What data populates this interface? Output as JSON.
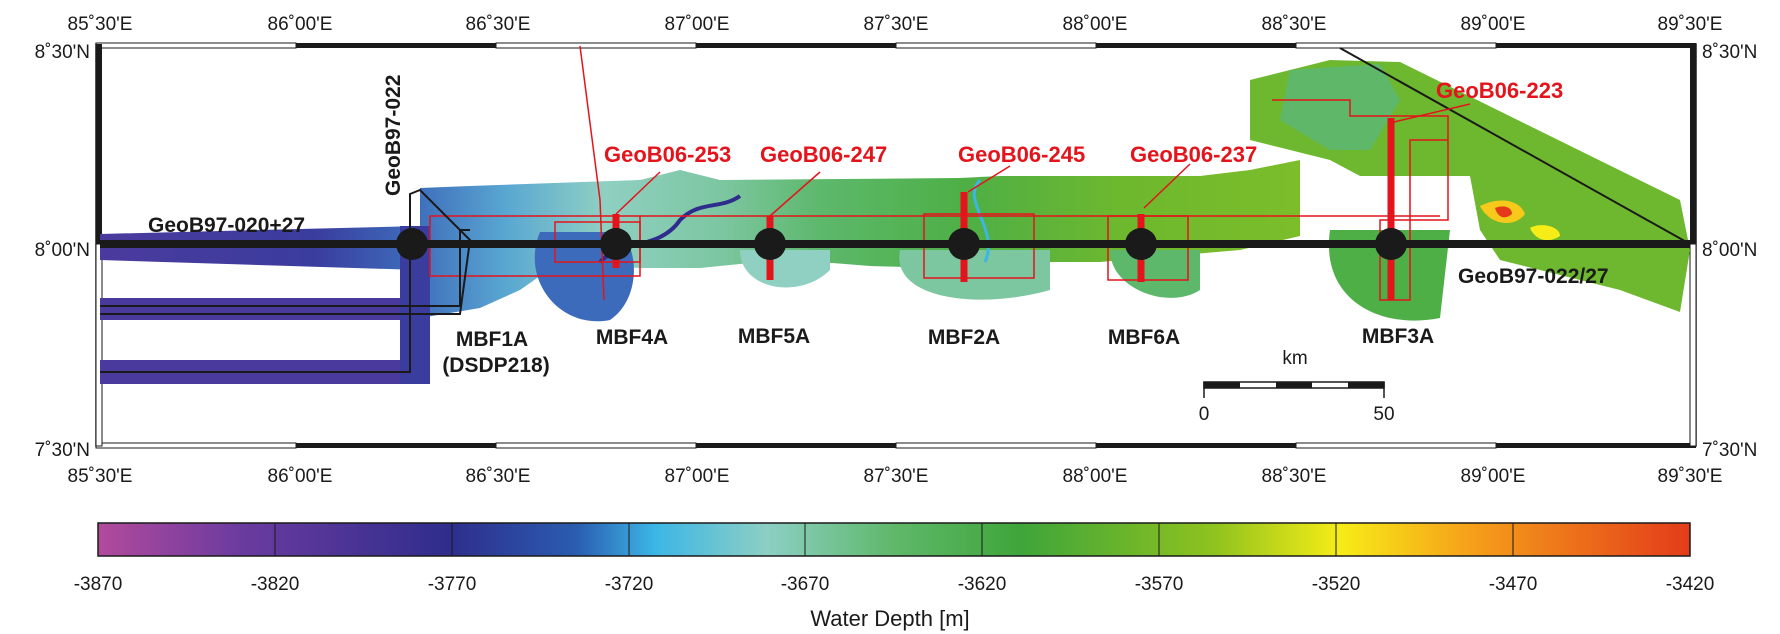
{
  "map": {
    "top_axis_labels": [
      "85˚30'E",
      "86˚00'E",
      "86˚30'E",
      "87˚00'E",
      "87˚30'E",
      "88˚00'E",
      "88˚30'E",
      "89˚00'E",
      "89˚30'E"
    ],
    "bottom_axis_labels": [
      "85˚30'E",
      "86˚00'E",
      "86˚30'E",
      "87˚00'E",
      "87˚30'E",
      "88˚00'E",
      "88˚30'E",
      "89˚00'E",
      "89˚30'E"
    ],
    "left_axis_labels": [
      "8˚30'N",
      "8˚00'N",
      "7˚30'N"
    ],
    "right_axis_labels": [
      "8˚30'N",
      "8˚00'N",
      "7˚30'N"
    ],
    "black_labels": {
      "geob97_022": "GeoB97-022",
      "geob97_020_27": "GeoB97-020+27",
      "geob97_022_27": "GeoB97-022/27",
      "mbf1a": "MBF1A",
      "dsdp218": "(DSDP218)",
      "mbf4a": "MBF4A",
      "mbf5a": "MBF5A",
      "mbf2a": "MBF2A",
      "mbf6a": "MBF6A",
      "mbf3a": "MBF3A"
    },
    "red_labels": {
      "geob06_253": "GeoB06-253",
      "geob06_247": "GeoB06-247",
      "geob06_245": "GeoB06-245",
      "geob06_237": "GeoB06-237",
      "geob06_223": "GeoB06-223"
    },
    "scale_bar": {
      "unit": "km",
      "start": "0",
      "end": "50"
    },
    "colors": {
      "site_marker": "#1a1a1a",
      "core_line": "#e3141b",
      "track_line": "#e3141b"
    }
  },
  "colorbar": {
    "title": "Water Depth [m]",
    "ticks": [
      "-3870",
      "-3820",
      "-3770",
      "-3720",
      "-3670",
      "-3620",
      "-3570",
      "-3520",
      "-3470",
      "-3420"
    ],
    "colors": [
      "#b24a9c",
      "#5e3a9e",
      "#2f2d8c",
      "#2a5cb0",
      "#3cb6e6",
      "#8ccfc4",
      "#5fb86a",
      "#3fa53a",
      "#8ec21f",
      "#f6ec17",
      "#f6a21a",
      "#e33b1a"
    ]
  }
}
